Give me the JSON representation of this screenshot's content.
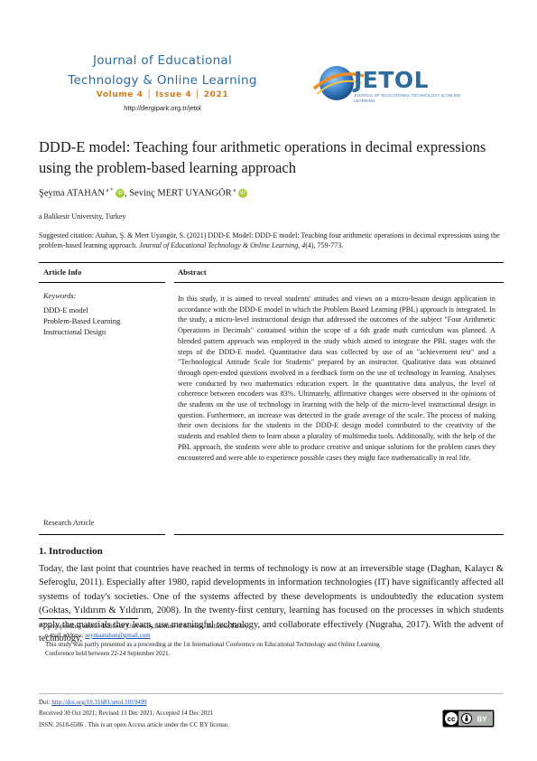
{
  "header": {
    "journal_line1": "Journal of Educational",
    "journal_line2": "Technology & Online Learning",
    "volume_line": "Volume 4 │ Issue 4 │ 2021",
    "url": "http://dergipark.org.tr/jetol",
    "logo_name": "JETOL",
    "logo_subtitle": "JOURNAL OF EDUCATIONAL TECHNOLOGY & ONLINE LEARNING"
  },
  "paper": {
    "title": "DDD-E model: Teaching four arithmetic operations in decimal expressions using the problem-based learning approach",
    "author1": "Şeyma ATAHAN",
    "author1_sup": " a *",
    "author2": ", Sevinç MERT UYANGÖR",
    "author2_sup": " a",
    "orcid_label": "iD",
    "affiliation": "a Balikesir University, Turkey",
    "citation_plain": "Suggested citation: Atahan, Ş. & Mert Uyangör, S. (2021) DDD-E Model: DDD-E model: Teaching four arithmetic operations in decimal expressions using the problem-based learning approach. ",
    "citation_journal": "Journal of Educational Technology & Online Learning, 4",
    "citation_end": "(4), 759-773."
  },
  "info": {
    "article_info_head": "Article Info",
    "abstract_head": "Abstract",
    "keywords_label": "Keywords:",
    "keywords": [
      "DDD-E model",
      "Problem-Based Learning",
      "Instructional Design"
    ],
    "article_type": "Research Article",
    "abstract": "In this study, it is aimed to reveal students' attitudes and views on a micro-lesson design application in accordance with the DDD-E model in which the Problem Based Learning (PBL) approach is integrated. In the study, a micro-level instructional design that addressed the outcomes of the subject \"Four Arithmetic Operations in Decimals\" contained within the scope of a 6th grade math curriculum was planned. A blended pattern approach was employed in the study which aimed to integrate the PBL stages with the steps of the DDD-E model. Quantitative data was collected by use of an \"achievement test\" and a \"Technological Attitude Scale for Students\" prepared by an instructor. Qualitative data was obtained through open-ended questions involved in a feedback form on the use of technology in learning. Analyses were conducted by two mathematics education expert. In the quantitative data analysis, the level of coherence between encoders was 83%. Ultimately, affirmative changes were observed in the opinions of the students on the use of technology in learning with the help of the micro-level instructional design in question. Furthermore, an increase was detected in the grade average of the scale. The process of making their own decisions for the students in the DDD-E design model contributed to the creativity of the students and enabled them to learn about a plurality of multimedia tools. Additionally, with the help of the PBL approach, the students were able to produce creative and unique solutions for the problem cases they encountered and were able to experience possible cases they might face mathematically in real life."
  },
  "intro": {
    "heading": "1.  Introduction",
    "text": "Today, the last point that countries have reached in terms of technology is now at an irreversible stage (Daghan, Kalaycı & Seferoglu, 2011). Especially after 1980, rapid developments in information technologies (IT) have significantly affected all systems of today's societies. One of the systems affected by these developments is undoubtedly the education system (Goktas, Yıldırım & Yıldırım, 2008). In the twenty-first century, learning has focused on the processes in which students apply the materials they learn, use meaningful technology, and collaborate effectively (Nugraha, 2017). With the advent of technology,"
  },
  "footer": {
    "corresponding": "* Corresponding author: Balikesir University,Institute of Science, Balikesir,Turkey.",
    "email_label": "e-mail address: ",
    "email": "seymaatahan@gmail.com",
    "presented_line1": "This study was partly presented as a proceeding at the 1st International Conference on Educational Technology and Online Learning",
    "presented_line2": "Conference held between 22-24 September 2021.",
    "doi_label": "Doi: ",
    "doi": "http://doi.org/10.31681/jetol.1019499",
    "received": "Received 30 Oct 2021; Revised 13 Dec 2021; Accepted 14 Dec 2021",
    "issn": "ISSN: 2618-6586 . This is an open Access article under the CC BY license.",
    "cc_text": "cc",
    "by_text": "BY"
  }
}
